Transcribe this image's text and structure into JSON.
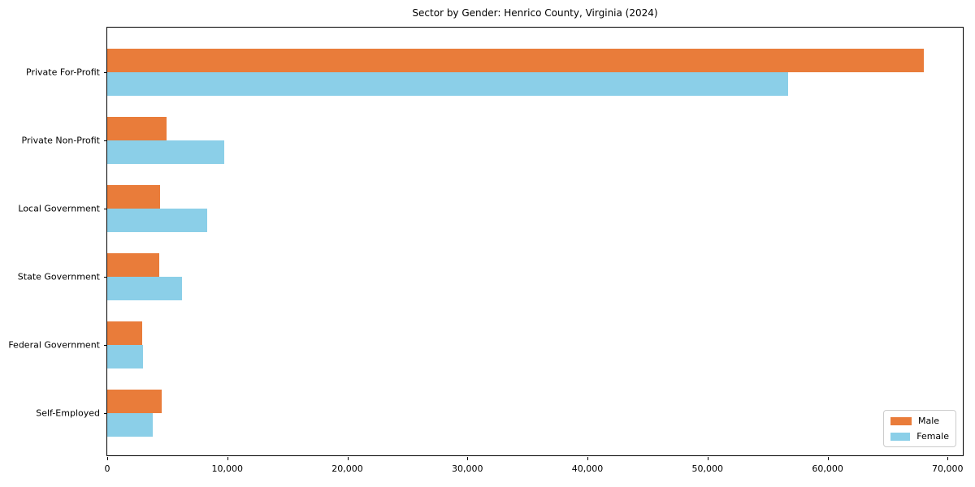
{
  "title": "Sector by Gender: Henrico County, Virginia (2024)",
  "chart_data": {
    "type": "bar",
    "orientation": "horizontal",
    "title": "Sector by Gender: Henrico County, Virginia (2024)",
    "categories": [
      "Private For-Profit",
      "Private Non-Profit",
      "Local Government",
      "State Government",
      "Federal Government",
      "Self-Employed"
    ],
    "series": [
      {
        "name": "Male",
        "color": "#e97c3a",
        "values": [
          68000,
          4950,
          4400,
          4350,
          2910,
          4500
        ]
      },
      {
        "name": "Female",
        "color": "#8bcfe8",
        "values": [
          56700,
          9750,
          8300,
          6250,
          2980,
          3780
        ]
      }
    ],
    "xlabel": "",
    "ylabel": "",
    "xlim": [
      0,
      71400
    ],
    "xticks": [
      0,
      10000,
      20000,
      30000,
      40000,
      50000,
      60000,
      70000
    ],
    "xtick_labels": [
      "0",
      "10,000",
      "20,000",
      "30,000",
      "40,000",
      "50,000",
      "60,000",
      "70,000"
    ],
    "grid": false,
    "legend": {
      "position": "lower right",
      "entries": [
        "Male",
        "Female"
      ]
    }
  },
  "colors": {
    "male": "#e97c3a",
    "female": "#8bcfe8",
    "spine": "#000000",
    "legend_border": "#cccccc",
    "background": "#ffffff"
  }
}
